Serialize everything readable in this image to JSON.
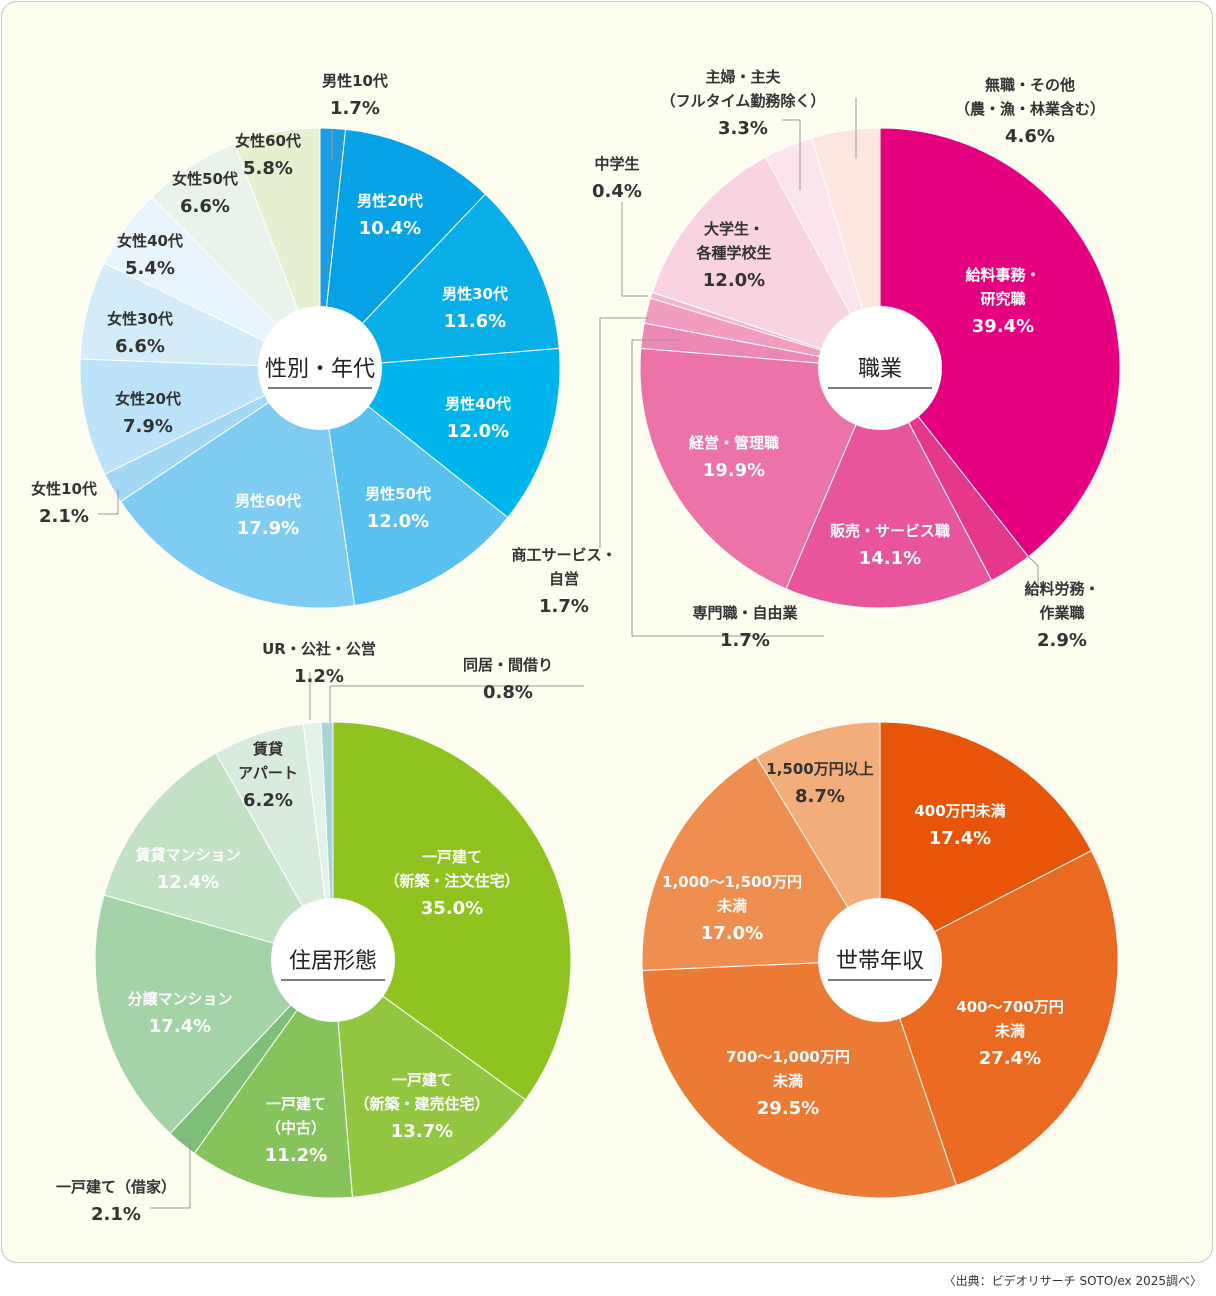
{
  "source": "〈出典：ビデオリサーチ SOTO/ex 2025調べ〉",
  "chart_data": [
    {
      "type": "pie",
      "center_label": "性別・年代",
      "slices": [
        {
          "label": [
            "男性10代"
          ],
          "value": 1.7,
          "value_label": "1.7%",
          "color": "#1a9de2",
          "label_color": "#555555"
        },
        {
          "label": [
            "男性20代"
          ],
          "value": 10.4,
          "value_label": "10.4%",
          "color": "#05a2e6",
          "label_color": "#ffffff"
        },
        {
          "label": [
            "男性30代"
          ],
          "value": 11.6,
          "value_label": "11.6%",
          "color": "#0aaee8",
          "label_color": "#ffffff"
        },
        {
          "label": [
            "男性40代"
          ],
          "value": 12.0,
          "value_label": "12.0%",
          "color": "#00b5ec",
          "label_color": "#ffffff"
        },
        {
          "label": [
            "男性50代"
          ],
          "value": 12.0,
          "value_label": "12.0%",
          "color": "#58c1f0",
          "label_color": "#ffffff"
        },
        {
          "label": [
            "男性60代"
          ],
          "value": 17.9,
          "value_label": "17.9%",
          "color": "#7fccf2",
          "label_color": "#ffffff"
        },
        {
          "label": [
            "女性10代"
          ],
          "value": 2.1,
          "value_label": "2.1%",
          "color": "#a3d8f5",
          "label_color": "#333333"
        },
        {
          "label": [
            "女性20代"
          ],
          "value": 7.9,
          "value_label": "7.9%",
          "color": "#bde3f8",
          "label_color": "#333333"
        },
        {
          "label": [
            "女性30代"
          ],
          "value": 6.6,
          "value_label": "6.6%",
          "color": "#d4ecf9",
          "label_color": "#333333"
        },
        {
          "label": [
            "女性40代"
          ],
          "value": 5.4,
          "value_label": "5.4%",
          "color": "#e8f5fc",
          "label_color": "#333333"
        },
        {
          "label": [
            "女性50代"
          ],
          "value": 6.6,
          "value_label": "6.6%",
          "color": "#eaf3ea",
          "label_color": "#333333"
        },
        {
          "label": [
            "女性60代"
          ],
          "value": 5.8,
          "value_label": "5.8%",
          "color": "#e6efcf",
          "label_color": "#333333"
        }
      ]
    },
    {
      "type": "pie",
      "center_label": "職業",
      "slices": [
        {
          "label": [
            "給料事務・",
            "研究職"
          ],
          "value": 39.4,
          "value_label": "39.4%",
          "color": "#e4007f",
          "label_color": "#ffffff"
        },
        {
          "label": [
            "給料労務・",
            "作業職"
          ],
          "value": 2.9,
          "value_label": "2.9%",
          "color": "#e5388b",
          "label_color": "#333333"
        },
        {
          "label": [
            "販売・サービス職"
          ],
          "value": 14.1,
          "value_label": "14.1%",
          "color": "#e8559a",
          "label_color": "#ffffff"
        },
        {
          "label": [
            "経営・管理職"
          ],
          "value": 19.9,
          "value_label": "19.9%",
          "color": "#ec72a8",
          "label_color": "#ffffff"
        },
        {
          "label": [
            "専門職・自由業"
          ],
          "value": 1.7,
          "value_label": "1.7%",
          "color": "#ee87b3",
          "label_color": "#333333"
        },
        {
          "label": [
            "商工サービス・",
            "自営"
          ],
          "value": 1.7,
          "value_label": "1.7%",
          "color": "#f29dc0",
          "label_color": "#333333"
        },
        {
          "label": [
            "中学生"
          ],
          "value": 0.4,
          "value_label": "0.4%",
          "color": "#f5b4cf",
          "label_color": "#333333"
        },
        {
          "label": [
            "大学生・",
            "各種学校生"
          ],
          "value": 12.0,
          "value_label": "12.0%",
          "color": "#f8d3e2",
          "label_color": "#333333"
        },
        {
          "label": [
            "主婦・主夫",
            "（フルタイム勤務除く）"
          ],
          "value": 3.3,
          "value_label": "3.3%",
          "color": "#fbe4ee",
          "label_color": "#333333"
        },
        {
          "label": [
            "無職・その他",
            "（農・漁・林業含む）"
          ],
          "value": 4.6,
          "value_label": "4.6%",
          "color": "#fde6e0",
          "label_color": "#333333"
        }
      ]
    },
    {
      "type": "pie",
      "center_label": "住居形態",
      "slices": [
        {
          "label": [
            "一戸建て",
            "（新築・注文住宅）"
          ],
          "value": 35.0,
          "value_label": "35.0%",
          "color": "#8fc31f",
          "label_color": "#ffffff"
        },
        {
          "label": [
            "一戸建て",
            "（新築・建売住宅）"
          ],
          "value": 13.7,
          "value_label": "13.7%",
          "color": "#92c641",
          "label_color": "#ffffff"
        },
        {
          "label": [
            "一戸建て",
            "（中古）"
          ],
          "value": 11.2,
          "value_label": "11.2%",
          "color": "#86c35a",
          "label_color": "#ffffff"
        },
        {
          "label": [
            "一戸建て（借家）"
          ],
          "value": 2.1,
          "value_label": "2.1%",
          "color": "#80bf78",
          "label_color": "#333333"
        },
        {
          "label": [
            "分譲マンション"
          ],
          "value": 17.4,
          "value_label": "17.4%",
          "color": "#a5d3a8",
          "label_color": "#ffffff"
        },
        {
          "label": [
            "賃貸マンション"
          ],
          "value": 12.4,
          "value_label": "12.4%",
          "color": "#c3e1c5",
          "label_color": "#ffffff"
        },
        {
          "label": [
            "賃貸",
            "アパート"
          ],
          "value": 6.2,
          "value_label": "6.2%",
          "color": "#d8ebdd",
          "label_color": "#333333"
        },
        {
          "label": [
            "UR・公社・公営"
          ],
          "value": 1.2,
          "value_label": "1.2%",
          "color": "#e4f1e8",
          "label_color": "#333333"
        },
        {
          "label": [
            "同居・間借り"
          ],
          "value": 0.8,
          "value_label": "0.8%",
          "color": "#a9d4d8",
          "label_color": "#333333"
        }
      ]
    },
    {
      "type": "pie",
      "center_label": "世帯年収",
      "slices": [
        {
          "label": [
            "400万円未満"
          ],
          "value": 17.4,
          "value_label": "17.4%",
          "color": "#e85408",
          "label_color": "#ffffff"
        },
        {
          "label": [
            "400〜700万円",
            "未満"
          ],
          "value": 27.4,
          "value_label": "27.4%",
          "color": "#eb6a21",
          "label_color": "#ffffff"
        },
        {
          "label": [
            "700〜1,000万円",
            "未満"
          ],
          "value": 29.5,
          "value_label": "29.5%",
          "color": "#ec7a34",
          "label_color": "#ffffff"
        },
        {
          "label": [
            "1,000〜1,500万円",
            "未満"
          ],
          "value": 17.0,
          "value_label": "17.0%",
          "color": "#ef8f4f",
          "label_color": "#ffffff"
        },
        {
          "label": [
            "1,500万円以上"
          ],
          "value": 8.7,
          "value_label": "8.7%",
          "color": "#f2ad7a",
          "label_color": "#333333"
        }
      ]
    }
  ]
}
